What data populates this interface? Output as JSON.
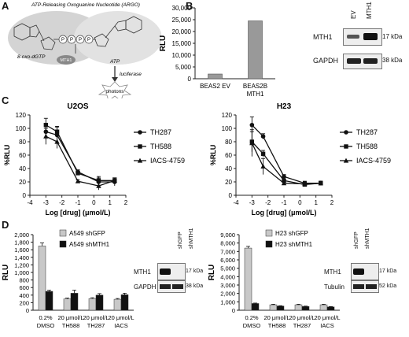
{
  "panelA": {
    "label": "A",
    "title": "ATP-Releasing Oxoguanine Nucleotide (ARGO)",
    "substrate": "8-oxo-dGTP",
    "enzyme": "MTH1",
    "p1": "P",
    "p2": "P",
    "p3": "P",
    "p4": "P",
    "product": "ATP",
    "reaction": "luciferase",
    "output": "photons"
  },
  "panelB": {
    "label": "B",
    "blot": {
      "lanes": [
        "EV",
        "MTH1"
      ],
      "rows": [
        {
          "name": "MTH1",
          "kda": "17 kDa"
        },
        {
          "name": "GAPDH",
          "kda": "38 kDa"
        }
      ]
    }
  },
  "panelC": {
    "label": "C"
  },
  "panelD": {
    "label": "D",
    "blotLeft": {
      "lanes": [
        "shGFP",
        "shMTH1"
      ],
      "rows": [
        {
          "name": "MTH1",
          "kda": "17 kDa"
        },
        {
          "name": "GAPDH",
          "kda": "38 kDa"
        }
      ]
    },
    "blotRight": {
      "lanes": [
        "shGFP",
        "shMTH1"
      ],
      "rows": [
        {
          "name": "MTH1",
          "kda": "17 kDa"
        },
        {
          "name": "Tubulin",
          "kda": "52 kDa"
        }
      ]
    }
  },
  "chart_data": [
    {
      "id": "B-bar",
      "type": "bar",
      "categories": [
        "BEAS2 EV",
        "BEAS2B MTH1"
      ],
      "values": [
        2000,
        24500
      ],
      "ylabel": "RLU",
      "ylim": [
        0,
        30000
      ],
      "yticks": [
        "0",
        "5,000",
        "10,000",
        "15,000",
        "20,000",
        "25,000",
        "30,000"
      ]
    },
    {
      "id": "C-U2OS",
      "type": "line",
      "title": "U2OS",
      "xlabel": "Log [drug] (μmol/L)",
      "ylabel": "%RLU",
      "xlim": [
        -4,
        2
      ],
      "ylim": [
        0,
        120
      ],
      "xticks": [
        "-4",
        "-3",
        "-2",
        "-1",
        "0",
        "1",
        "2"
      ],
      "yticks": [
        "0",
        "20",
        "40",
        "60",
        "80",
        "100",
        "120"
      ],
      "series": [
        {
          "name": "TH287",
          "x": [
            -3,
            -2.3,
            -1,
            0.3,
            1.3
          ],
          "y": [
            95,
            90,
            35,
            20,
            20
          ],
          "err": [
            12,
            12,
            3,
            8,
            6
          ]
        },
        {
          "name": "TH588",
          "x": [
            -3,
            -2.3,
            -1,
            0.3,
            1.3
          ],
          "y": [
            105,
            95,
            33,
            22,
            22
          ],
          "err": [
            10,
            8,
            3,
            4,
            4
          ]
        },
        {
          "name": "IACS-4759",
          "x": [
            -3,
            -2.3,
            -1,
            0.3,
            1.3
          ],
          "y": [
            88,
            80,
            21,
            14,
            22
          ],
          "err": [
            12,
            10,
            2,
            6,
            4
          ]
        }
      ]
    },
    {
      "id": "C-H23",
      "type": "line",
      "title": "H23",
      "xlabel": "Log [drug] (μmol/L)",
      "ylabel": "%RLU",
      "xlim": [
        -4,
        2
      ],
      "ylim": [
        0,
        120
      ],
      "xticks": [
        "-4",
        "-3",
        "-2",
        "-1",
        "0",
        "1",
        "2"
      ],
      "yticks": [
        "0",
        "20",
        "40",
        "60",
        "80",
        "100",
        "120"
      ],
      "series": [
        {
          "name": "TH287",
          "x": [
            -3,
            -2.3,
            -1,
            0.3,
            1.3
          ],
          "y": [
            105,
            88,
            28,
            18,
            18
          ],
          "err": [
            12,
            4,
            3,
            3,
            3
          ]
        },
        {
          "name": "TH588",
          "x": [
            -3,
            -2.3,
            -1,
            0.3,
            1.3
          ],
          "y": [
            80,
            62,
            22,
            16,
            18
          ],
          "err": [
            15,
            5,
            2,
            3,
            3
          ]
        },
        {
          "name": "IACS-4759",
          "x": [
            -3,
            -2.3,
            -1,
            0.3,
            1.3
          ],
          "y": [
            78,
            43,
            18,
            17,
            18
          ],
          "err": [
            20,
            12,
            2,
            3,
            3
          ]
        }
      ]
    },
    {
      "id": "D-A549",
      "type": "bar",
      "ylabel": "RLU",
      "ylim": [
        0,
        2000
      ],
      "yticks": [
        "0",
        "200",
        "400",
        "600",
        "800",
        "1,000",
        "1,200",
        "1,400",
        "1,600",
        "1,800",
        "2,000"
      ],
      "categories": [
        [
          "0.2%",
          "DMSO"
        ],
        [
          "20 μmol/L",
          "TH588"
        ],
        [
          "20 μmol/L",
          "TH287"
        ],
        [
          "20 μmol/L",
          "IACS"
        ]
      ],
      "series": [
        {
          "name": "A549 shGFP",
          "color": "#c8c8c8",
          "values": [
            1700,
            300,
            310,
            290
          ],
          "err": [
            80,
            20,
            20,
            20
          ]
        },
        {
          "name": "A549 shMTH1",
          "color": "#111111",
          "values": [
            500,
            450,
            400,
            410
          ],
          "err": [
            30,
            80,
            40,
            40
          ]
        }
      ]
    },
    {
      "id": "D-H23",
      "type": "bar",
      "ylabel": "RLU",
      "ylim": [
        0,
        9000
      ],
      "yticks": [
        "0",
        "1,000",
        "2,000",
        "3,000",
        "4,000",
        "5,000",
        "6,000",
        "7,000",
        "8,000",
        "9,000"
      ],
      "categories": [
        [
          "0.2%",
          "DMSO"
        ],
        [
          "20 μmol/L",
          "TH588"
        ],
        [
          "20 μmol/L",
          "TH287"
        ],
        [
          "20 μmol/L",
          "IACS"
        ]
      ],
      "series": [
        {
          "name": "H23 shGFP",
          "color": "#c8c8c8",
          "values": [
            7400,
            650,
            650,
            650
          ],
          "err": [
            200,
            60,
            60,
            60
          ]
        },
        {
          "name": "H23 shMTH1",
          "color": "#111111",
          "values": [
            800,
            500,
            450,
            400
          ],
          "err": [
            50,
            40,
            40,
            40
          ]
        }
      ]
    }
  ]
}
